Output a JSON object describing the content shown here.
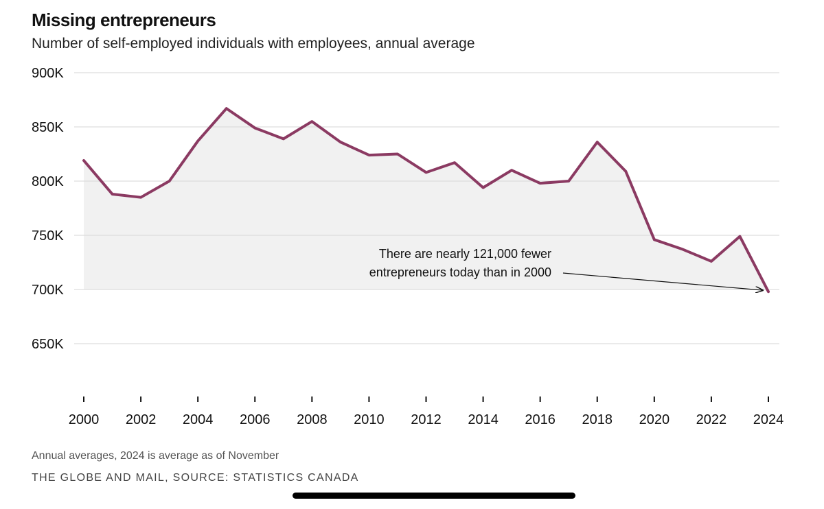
{
  "header": {
    "title": "Missing entrepreneurs",
    "subtitle": "Number of self-employed individuals with employees, annual average"
  },
  "footer": {
    "note": "Annual averages, 2024 is average as of November",
    "source": "THE GLOBE AND MAIL, SOURCE: STATISTICS CANADA"
  },
  "colors": {
    "line": "#8b3a62",
    "area": "#f1f1f1",
    "grid": "#d6d6d6"
  },
  "chart_data": {
    "type": "area",
    "title": "Missing entrepreneurs",
    "subtitle": "Number of self-employed individuals with employees, annual average",
    "xlabel": "",
    "ylabel": "",
    "ylim": [
      650000,
      900000
    ],
    "xlim": [
      2000,
      2024
    ],
    "grid": true,
    "y_ticks": [
      900000,
      850000,
      800000,
      750000,
      700000,
      650000
    ],
    "y_tick_labels": [
      "900K",
      "850K",
      "800K",
      "750K",
      "700K",
      "650K"
    ],
    "x_ticks": [
      2000,
      2002,
      2004,
      2006,
      2008,
      2010,
      2012,
      2014,
      2016,
      2018,
      2020,
      2022,
      2024
    ],
    "x_tick_labels": [
      "2000",
      "2002",
      "2004",
      "2006",
      "2008",
      "2010",
      "2012",
      "2014",
      "2016",
      "2018",
      "2020",
      "2022",
      "2024"
    ],
    "series": [
      {
        "x": [
          2000,
          2001,
          2002,
          2003,
          2004,
          2005,
          2006,
          2007,
          2008,
          2009,
          2010,
          2011,
          2012,
          2013,
          2014,
          2015,
          2016,
          2017,
          2018,
          2019,
          2020,
          2021,
          2022,
          2023,
          2024
        ],
        "values": [
          819000,
          788000,
          785000,
          800000,
          837000,
          867000,
          849000,
          839000,
          855000,
          836000,
          824000,
          825000,
          808000,
          817000,
          794000,
          810000,
          798000,
          800000,
          836000,
          809000,
          746000,
          737000,
          726000,
          749000,
          698000
        ]
      }
    ],
    "annotations": [
      {
        "lines": [
          "There are nearly 121,000 fewer",
          "entrepreneurs today than in 2000"
        ],
        "x": 2024,
        "y": 698000
      }
    ]
  }
}
